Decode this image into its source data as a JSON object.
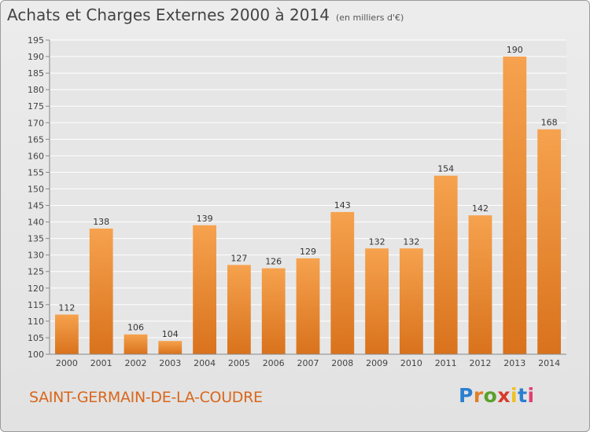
{
  "title": "Achats et Charges Externes 2000 à 2014",
  "unit_note": "(en milliers d'€)",
  "commune": "SAINT-GERMAIN-DE-LA-COUDRE",
  "logo": {
    "text": "Proxiti",
    "letter_colors": [
      "#2a7fd0",
      "#e0802a",
      "#5aa02a",
      "#d83a2a",
      "#f0c020",
      "#2a7fd0",
      "#e04070"
    ]
  },
  "colors": {
    "bar_light": "#f6a24e",
    "bar_dark": "#d9721c",
    "grid": "#ffffff",
    "plot_bg": "#e6e6e6"
  },
  "chart_data": {
    "type": "bar",
    "categories": [
      "2000",
      "2001",
      "2002",
      "2003",
      "2004",
      "2005",
      "2006",
      "2007",
      "2008",
      "2009",
      "2010",
      "2011",
      "2012",
      "2013",
      "2014"
    ],
    "values": [
      112,
      138,
      106,
      104,
      139,
      127,
      126,
      129,
      143,
      132,
      132,
      154,
      142,
      190,
      168
    ],
    "ylim": [
      100,
      195
    ],
    "ytick_step": 5,
    "grid": true
  }
}
